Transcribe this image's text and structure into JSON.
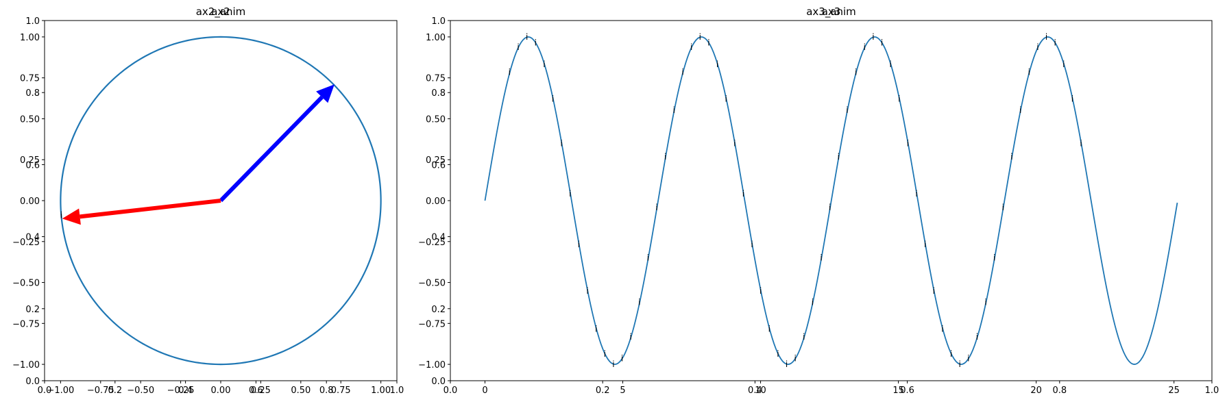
{
  "chart_data": [
    {
      "type": "line",
      "title": "ax2",
      "title_overlay": "ax2_anim",
      "xlabel": "",
      "ylabel": "",
      "xlim": [
        -1.1,
        1.1
      ],
      "ylim": [
        -1.1,
        1.1
      ],
      "xticks": [
        -1.0,
        -0.75,
        -0.5,
        -0.25,
        0.0,
        0.25,
        0.5,
        0.75,
        1.0
      ],
      "xtick_labels": [
        "−1.00",
        "−0.75",
        "−0.50",
        "−0.25",
        "0.00",
        "0.25",
        "0.50",
        "0.75",
        "1.00"
      ],
      "yticks": [
        -1.0,
        -0.75,
        -0.5,
        -0.25,
        0.0,
        0.25,
        0.5,
        0.75,
        1.0
      ],
      "ytick_labels": [
        "−1.00",
        "−0.75",
        "−0.50",
        "−0.25",
        "0.00",
        "0.25",
        "0.50",
        "0.75",
        "1.00"
      ],
      "background_ticks": [
        0.0,
        0.2,
        0.4,
        0.6,
        0.8,
        1.0
      ],
      "background_tick_labels": [
        "0.0",
        "0.2",
        "0.4",
        "0.6",
        "0.8",
        "1.0"
      ],
      "series": [
        {
          "kind": "unit-circle",
          "color": "#1f77b4",
          "center": [
            0,
            0
          ],
          "radius": 1.0
        }
      ],
      "arrows": [
        {
          "color": "#0000ff",
          "from": [
            0,
            0
          ],
          "to": [
            0.71,
            0.71
          ]
        },
        {
          "color": "#ff0000",
          "from": [
            0,
            0
          ],
          "to": [
            -0.99,
            -0.11
          ]
        }
      ],
      "annotations": [
        {
          "text": "i",
          "x": -0.99,
          "y": -0.09
        }
      ],
      "grid": false
    },
    {
      "type": "line",
      "title": "ax3",
      "title_overlay": "ax3_anim",
      "xlabel": "",
      "ylabel": "",
      "xlim": [
        -1.256,
        26.376
      ],
      "ylim": [
        -1.1,
        1.1
      ],
      "xticks": [
        0,
        5,
        10,
        15,
        20,
        25
      ],
      "xtick_labels": [
        "0",
        "5",
        "10",
        "15",
        "20",
        "25"
      ],
      "yticks": [
        -1.0,
        -0.75,
        -0.5,
        -0.25,
        0.0,
        0.25,
        0.5,
        0.75,
        1.0
      ],
      "ytick_labels": [
        "−1.00",
        "−0.75",
        "−0.50",
        "−0.25",
        "0.00",
        "0.25",
        "0.50",
        "0.75",
        "1.00"
      ],
      "background_ticks": [
        0.0,
        0.2,
        0.4,
        0.6,
        0.8,
        1.0
      ],
      "background_tick_labels": [
        "0.0",
        "0.2",
        "0.4",
        "0.6",
        "0.8",
        "1.0"
      ],
      "series": [
        {
          "kind": "function",
          "function": "sin",
          "color": "#1f77b4",
          "x_range": [
            0,
            25.12
          ],
          "frequency": 1.0
        }
      ],
      "marker_labels": {
        "text": "i",
        "x_range": [
          0.9,
          21.7
        ],
        "step": 0.31416,
        "note": "small 'i' glyphs placed along the sine curve"
      },
      "grid": false
    }
  ]
}
